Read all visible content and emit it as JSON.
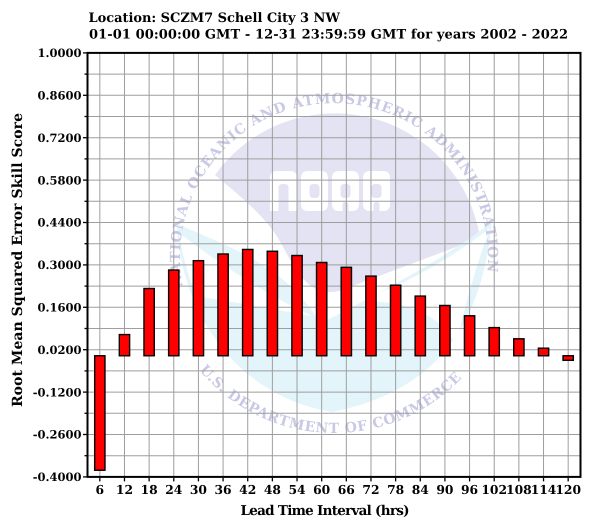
{
  "title": {
    "line1": "Location: SCZM7 Schell City 3 NW",
    "line2": "01-01 00:00:00 GMT - 12-31 23:59:59 GMT for years 2002 - 2022"
  },
  "watermark": {
    "emblem_text": "NOAA",
    "top_arc_text": "NATIONAL OCEANIC AND ATMOSPHERIC ADMINISTRATION",
    "bottom_arc_text": "U.S. DEPARTMENT OF COMMERCE"
  },
  "colors": {
    "bar_fill": "#ff0000",
    "bar_edge": "#000000",
    "grid": "#9e9e9e",
    "axis": "#000000",
    "text": "#000000",
    "background": "#ffffff",
    "watermark_dome": "#e3e3f3",
    "watermark_arc_text": "#c9c9e6",
    "watermark_sea": "#e3f5fa",
    "watermark_letters": "#ffffff"
  },
  "chart_data": {
    "type": "bar",
    "title": "Location: SCZM7 Schell City 3 NW",
    "subtitle": "01-01 00:00:00 GMT - 12-31 23:59:59 GMT for years 2002 - 2022",
    "xlabel": "Lead Time Interval (hrs)",
    "ylabel": "Root Mean Squared Error Skill Score",
    "categories": [
      6,
      12,
      18,
      24,
      30,
      36,
      42,
      48,
      54,
      60,
      66,
      72,
      78,
      84,
      90,
      96,
      102,
      108,
      114,
      120
    ],
    "values": [
      -0.378,
      0.07,
      0.222,
      0.283,
      0.314,
      0.336,
      0.351,
      0.345,
      0.331,
      0.308,
      0.292,
      0.263,
      0.233,
      0.197,
      0.166,
      0.132,
      0.093,
      0.056,
      0.025,
      -0.015
    ],
    "ylim": [
      -0.4,
      1.0
    ],
    "ytick_labels": [
      "1.0000",
      "0.8600",
      "0.7200",
      "0.5800",
      "0.4400",
      "0.3000",
      "0.1600",
      "0.0200",
      "-0.1200",
      "-0.2600",
      "-0.4000"
    ],
    "ytick_values": [
      1.0,
      0.86,
      0.72,
      0.58,
      0.44,
      0.3,
      0.16,
      0.02,
      -0.12,
      -0.26,
      -0.4
    ],
    "ytick_minor_step": 0.07,
    "bar_baseline": 0,
    "grid": true,
    "legend": false
  }
}
